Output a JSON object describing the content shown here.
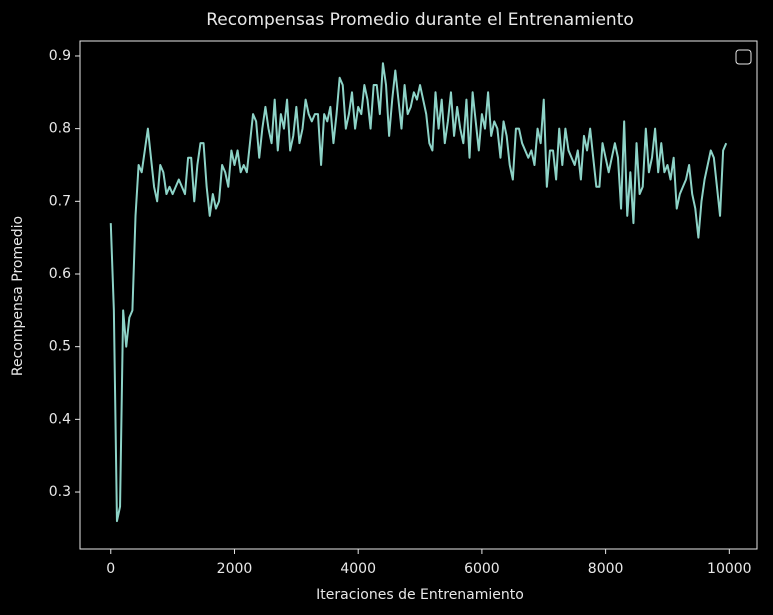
{
  "chart_data": {
    "type": "line",
    "title": "Recompensas Promedio durante el Entrenamiento",
    "xlabel": "Iteraciones de Entrenamiento",
    "ylabel": "Recompensa Promedio",
    "x": [
      0,
      50,
      100,
      150,
      200,
      250,
      300,
      350,
      400,
      450,
      500,
      550,
      600,
      650,
      700,
      750,
      800,
      850,
      900,
      950,
      1000,
      1050,
      1100,
      1150,
      1200,
      1250,
      1300,
      1350,
      1400,
      1450,
      1500,
      1550,
      1600,
      1650,
      1700,
      1750,
      1800,
      1850,
      1900,
      1950,
      2000,
      2050,
      2100,
      2150,
      2200,
      2250,
      2300,
      2350,
      2400,
      2450,
      2500,
      2550,
      2600,
      2650,
      2700,
      2750,
      2800,
      2850,
      2900,
      2950,
      3000,
      3050,
      3100,
      3150,
      3200,
      3250,
      3300,
      3350,
      3400,
      3450,
      3500,
      3550,
      3600,
      3650,
      3700,
      3750,
      3800,
      3850,
      3900,
      3950,
      4000,
      4050,
      4100,
      4150,
      4200,
      4250,
      4300,
      4350,
      4400,
      4450,
      4500,
      4550,
      4600,
      4650,
      4700,
      4750,
      4800,
      4850,
      4900,
      4950,
      5000,
      5050,
      5100,
      5150,
      5200,
      5250,
      5300,
      5350,
      5400,
      5450,
      5500,
      5550,
      5600,
      5650,
      5700,
      5750,
      5800,
      5850,
      5900,
      5950,
      6000,
      6050,
      6100,
      6150,
      6200,
      6250,
      6300,
      6350,
      6400,
      6450,
      6500,
      6550,
      6600,
      6650,
      6700,
      6750,
      6800,
      6850,
      6900,
      6950,
      7000,
      7050,
      7100,
      7150,
      7200,
      7250,
      7300,
      7350,
      7400,
      7450,
      7500,
      7550,
      7600,
      7650,
      7700,
      7750,
      7800,
      7850,
      7900,
      7950,
      8000,
      8050,
      8100,
      8150,
      8200,
      8250,
      8300,
      8350,
      8400,
      8450,
      8500,
      8550,
      8600,
      8650,
      8700,
      8750,
      8800,
      8850,
      8900,
      8950,
      9000,
      9050,
      9100,
      9150,
      9200,
      9250,
      9300,
      9350,
      9400,
      9450,
      9500,
      9550,
      9600,
      9650,
      9700,
      9750,
      9800,
      9850,
      9900,
      9950
    ],
    "series": [
      {
        "color": "#8dd3c7",
        "values": [
          0.67,
          0.55,
          0.26,
          0.28,
          0.55,
          0.5,
          0.54,
          0.55,
          0.68,
          0.75,
          0.74,
          0.77,
          0.8,
          0.76,
          0.72,
          0.7,
          0.75,
          0.74,
          0.71,
          0.72,
          0.71,
          0.72,
          0.73,
          0.72,
          0.71,
          0.76,
          0.76,
          0.7,
          0.75,
          0.78,
          0.78,
          0.72,
          0.68,
          0.71,
          0.69,
          0.7,
          0.75,
          0.74,
          0.72,
          0.77,
          0.75,
          0.77,
          0.74,
          0.75,
          0.74,
          0.78,
          0.82,
          0.81,
          0.76,
          0.8,
          0.83,
          0.8,
          0.78,
          0.84,
          0.77,
          0.82,
          0.8,
          0.84,
          0.77,
          0.79,
          0.83,
          0.78,
          0.8,
          0.84,
          0.82,
          0.81,
          0.82,
          0.82,
          0.75,
          0.82,
          0.81,
          0.83,
          0.78,
          0.82,
          0.87,
          0.86,
          0.8,
          0.82,
          0.85,
          0.8,
          0.83,
          0.82,
          0.86,
          0.84,
          0.8,
          0.86,
          0.86,
          0.82,
          0.89,
          0.86,
          0.79,
          0.84,
          0.88,
          0.84,
          0.8,
          0.86,
          0.82,
          0.83,
          0.85,
          0.84,
          0.86,
          0.84,
          0.82,
          0.78,
          0.77,
          0.85,
          0.8,
          0.84,
          0.78,
          0.81,
          0.85,
          0.79,
          0.83,
          0.8,
          0.78,
          0.84,
          0.76,
          0.85,
          0.81,
          0.77,
          0.82,
          0.8,
          0.85,
          0.79,
          0.81,
          0.8,
          0.76,
          0.81,
          0.79,
          0.75,
          0.73,
          0.8,
          0.8,
          0.78,
          0.77,
          0.76,
          0.77,
          0.75,
          0.8,
          0.78,
          0.84,
          0.72,
          0.77,
          0.77,
          0.73,
          0.8,
          0.75,
          0.8,
          0.77,
          0.76,
          0.75,
          0.77,
          0.73,
          0.79,
          0.77,
          0.8,
          0.76,
          0.72,
          0.72,
          0.78,
          0.76,
          0.74,
          0.76,
          0.78,
          0.76,
          0.69,
          0.81,
          0.68,
          0.74,
          0.67,
          0.78,
          0.71,
          0.72,
          0.8,
          0.74,
          0.76,
          0.8,
          0.74,
          0.78,
          0.74,
          0.75,
          0.73,
          0.76,
          0.69,
          0.71,
          0.72,
          0.73,
          0.75,
          0.71,
          0.69,
          0.65,
          0.7,
          0.73,
          0.75,
          0.77,
          0.76,
          0.72,
          0.68,
          0.77,
          0.78
        ]
      }
    ],
    "xlim": [
      -497.5,
      10447.5
    ],
    "ylim": [
      0.2216,
      0.9206
    ],
    "xticks": [
      0,
      2000,
      4000,
      6000,
      8000,
      10000
    ],
    "yticks": [
      0.3,
      0.4,
      0.5,
      0.6,
      0.7,
      0.8,
      0.9
    ]
  }
}
